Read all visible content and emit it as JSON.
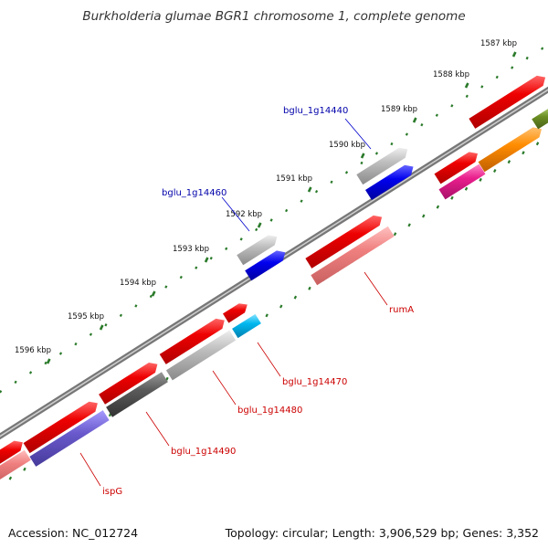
{
  "title": "Burkholderia glumae BGR1 chromosome 1, complete genome",
  "footer": {
    "accession": "Accession: NC_012724",
    "summary": "Topology: circular; Length: 3,906,529 bp; Genes: 3,352"
  },
  "scale": {
    "ticks": [
      "1587 kbp",
      "1588 kbp",
      "1589 kbp",
      "1590 kbp",
      "1591 kbp",
      "1592 kbp",
      "1593 kbp",
      "1594 kbp",
      "1595 kbp",
      "1596 kbp"
    ]
  },
  "gene_labels": [
    {
      "name": "bglu_1g14440",
      "strand": "upper",
      "color": "#0000aa"
    },
    {
      "name": "bglu_1g14460",
      "strand": "upper",
      "color": "#0000aa"
    },
    {
      "name": "rumA",
      "strand": "lower",
      "color": "#cc0000"
    },
    {
      "name": "bglu_1g14470",
      "strand": "lower",
      "color": "#cc0000"
    },
    {
      "name": "bglu_1g14480",
      "strand": "lower",
      "color": "#cc0000"
    },
    {
      "name": "bglu_1g14490",
      "strand": "lower",
      "color": "#cc0000"
    },
    {
      "name": "ispG",
      "strand": "lower",
      "color": "#cc0000"
    }
  ],
  "colors": {
    "backbone": "#888888",
    "tick": "#2a7a2a",
    "gene_red": "#ee0000",
    "gene_pink": "#f08080",
    "gene_blue": "#0000ee",
    "gene_grey": "#b0b0b0",
    "gene_darkgrey": "#555555",
    "gene_cyan": "#00b7ee",
    "gene_purple": "#6a5acd",
    "gene_orange": "#ff8c00",
    "gene_magenta": "#e91e8c",
    "gene_olive": "#6b8e23"
  }
}
